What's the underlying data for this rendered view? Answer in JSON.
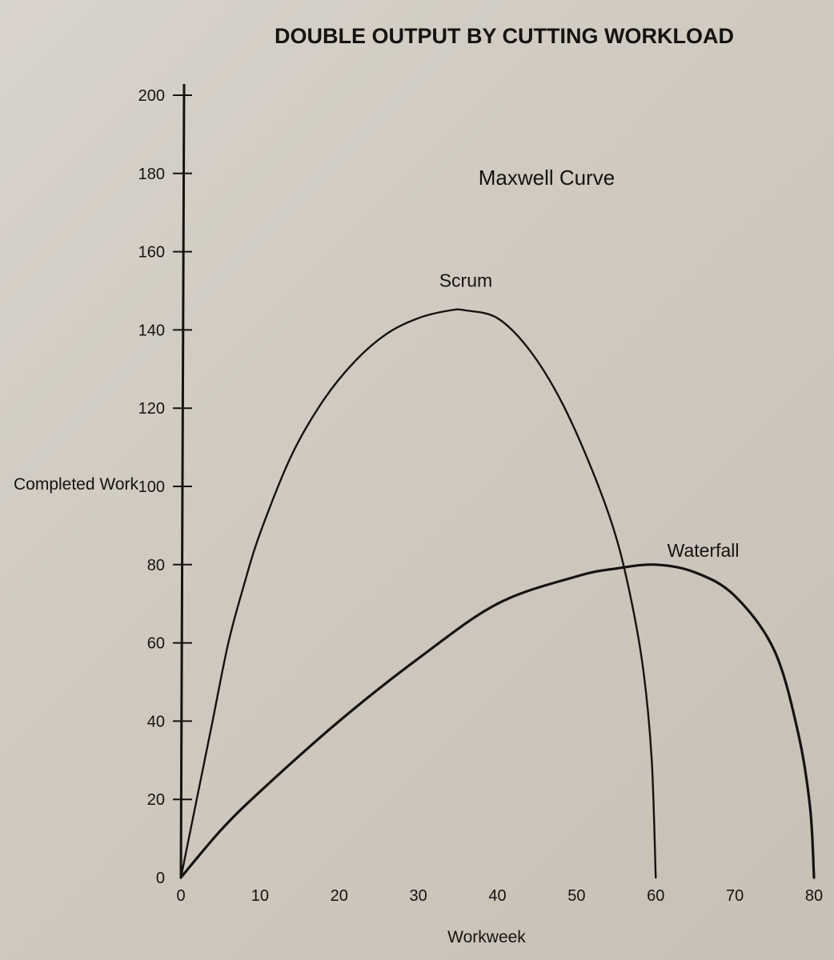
{
  "chart_data": {
    "type": "line",
    "title": "DOUBLE OUTPUT BY CUTTING WORKLOAD",
    "subtitle": "Maxwell Curve",
    "xlabel": "Workweek",
    "ylabel": "Completed Work",
    "xlim": [
      0,
      80
    ],
    "ylim": [
      0,
      200
    ],
    "x_ticks": [
      0,
      10,
      20,
      30,
      40,
      50,
      60,
      70,
      80
    ],
    "y_ticks": [
      0,
      20,
      40,
      60,
      80,
      100,
      120,
      140,
      160,
      180,
      200
    ],
    "grid": false,
    "legend": "none",
    "series": [
      {
        "name": "Scrum",
        "points": [
          [
            0,
            0
          ],
          [
            2,
            20
          ],
          [
            4,
            40
          ],
          [
            6,
            60
          ],
          [
            8,
            75
          ],
          [
            10,
            88
          ],
          [
            14,
            108
          ],
          [
            18,
            122
          ],
          [
            22,
            132
          ],
          [
            26,
            139
          ],
          [
            30,
            143
          ],
          [
            34,
            145
          ],
          [
            36,
            145
          ],
          [
            40,
            143
          ],
          [
            44,
            135
          ],
          [
            48,
            122
          ],
          [
            52,
            104
          ],
          [
            55,
            87
          ],
          [
            57,
            70
          ],
          [
            58.5,
            52
          ],
          [
            59.5,
            30
          ],
          [
            60,
            0
          ]
        ]
      },
      {
        "name": "Waterfall",
        "points": [
          [
            0,
            0
          ],
          [
            5,
            12
          ],
          [
            10,
            22
          ],
          [
            20,
            40
          ],
          [
            30,
            56
          ],
          [
            40,
            70
          ],
          [
            50,
            77
          ],
          [
            55,
            79
          ],
          [
            60,
            80
          ],
          [
            65,
            78
          ],
          [
            70,
            72
          ],
          [
            75,
            58
          ],
          [
            78,
            37
          ],
          [
            79.5,
            18
          ],
          [
            80,
            0
          ]
        ]
      }
    ]
  }
}
